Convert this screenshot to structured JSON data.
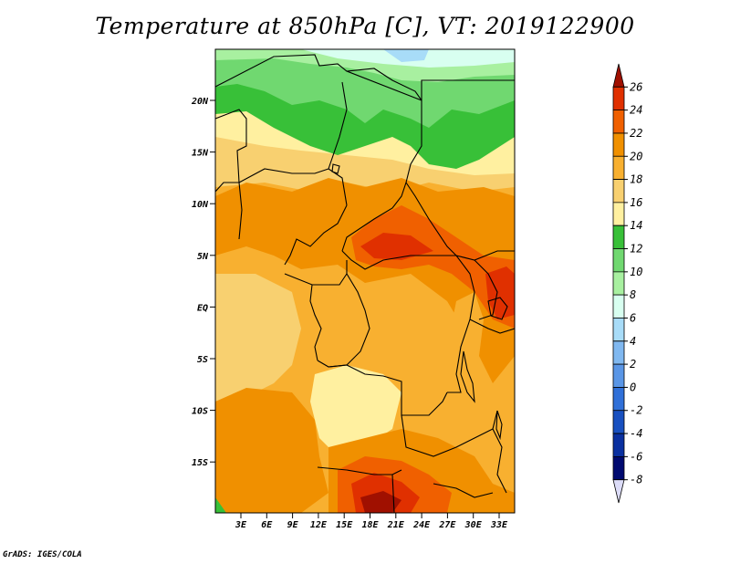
{
  "title": "Temperature at 850hPa [C], VT: 2019122900",
  "credit": "GrADS: IGES/COLA",
  "map": {
    "lat_ticks": [
      "20N",
      "15N",
      "10N",
      "5N",
      "EQ",
      "5S",
      "10S",
      "15S"
    ],
    "lon_ticks": [
      "3E",
      "6E",
      "9E",
      "12E",
      "15E",
      "18E",
      "21E",
      "24E",
      "27E",
      "30E",
      "33E"
    ]
  },
  "colorbar": {
    "levels": [
      "26",
      "24",
      "22",
      "20",
      "18",
      "16",
      "14",
      "12",
      "10",
      "8",
      "6",
      "4",
      "2",
      "0",
      "-2",
      "-4",
      "-6",
      "-8"
    ],
    "colors": [
      "#a01000",
      "#e03000",
      "#f06000",
      "#f09000",
      "#f8b030",
      "#f8d070",
      "#fff0a0",
      "#38c038",
      "#70d870",
      "#a8f0a0",
      "#d8fff0",
      "#a8dcf8",
      "#80b8f0",
      "#5a96e6",
      "#3070d8",
      "#1850c0",
      "#0a30a0",
      "#000a70",
      "#dcdcf8"
    ]
  }
}
